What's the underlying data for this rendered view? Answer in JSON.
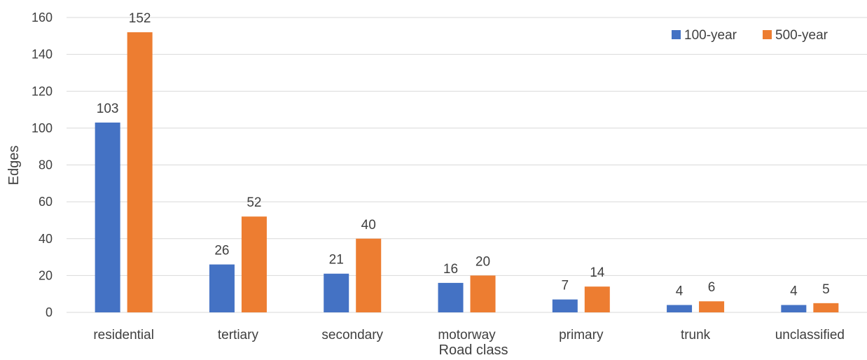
{
  "chart_data": {
    "type": "bar",
    "xlabel": "Road class",
    "ylabel": "Edges",
    "ylim": [
      0,
      160
    ],
    "ytick_step": 20,
    "grid": true,
    "legend_position": "top-right",
    "categories": [
      "residential",
      "tertiary",
      "secondary",
      "motorway",
      "primary",
      "trunk",
      "unclassified"
    ],
    "series": [
      {
        "name": "100-year",
        "color": "#4472c4",
        "values": [
          103,
          26,
          21,
          16,
          7,
          4,
          4
        ]
      },
      {
        "name": "500-year",
        "color": "#ed7d31",
        "values": [
          152,
          52,
          40,
          20,
          14,
          6,
          5
        ]
      }
    ]
  }
}
